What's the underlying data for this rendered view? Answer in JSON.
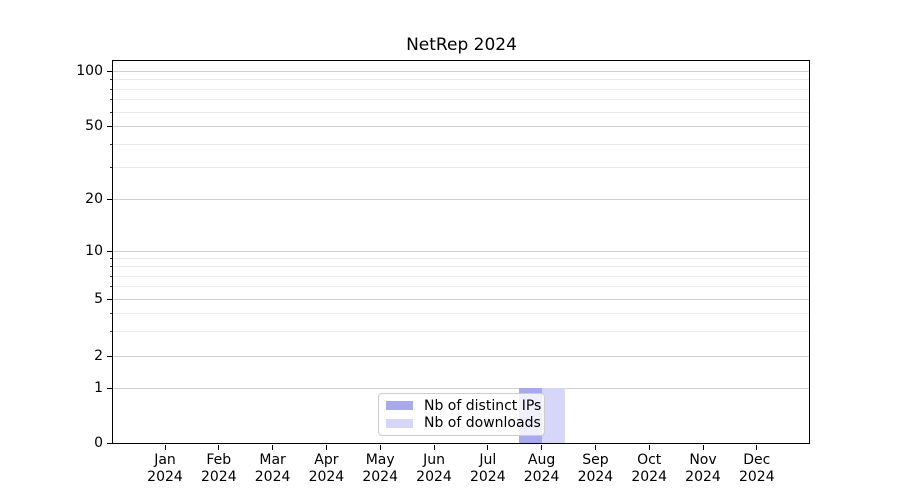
{
  "chart_data": {
    "type": "bar",
    "title": "NetRep 2024",
    "x_categories": [
      "Jan",
      "Feb",
      "Mar",
      "Apr",
      "May",
      "Jun",
      "Jul",
      "Aug",
      "Sep",
      "Oct",
      "Nov",
      "Dec"
    ],
    "x_year_label": "2024",
    "series": [
      {
        "name": "Nb of distinct IPs",
        "color": "#a9a9ee",
        "values": [
          0,
          0,
          0,
          0,
          0,
          0,
          0,
          1,
          0,
          0,
          0,
          0
        ]
      },
      {
        "name": "Nb of downloads",
        "color": "#d6d6f8",
        "values": [
          0,
          0,
          0,
          0,
          0,
          0,
          0,
          1,
          0,
          0,
          0,
          0
        ]
      }
    ],
    "y_major_ticks": [
      0,
      1,
      2,
      5,
      10,
      20,
      50,
      100
    ],
    "y_minor_ticks": [
      3,
      4,
      6,
      7,
      8,
      9,
      30,
      40,
      60,
      70,
      80,
      90
    ],
    "ylim": [
      0,
      100
    ],
    "yscale": "log-like with 0 baseline",
    "grid": "horizontal major and minor",
    "legend_position": "lower center",
    "colors": {
      "major_grid": "#cfcfcf",
      "minor_grid": "#e9e9e9",
      "axis": "#000000",
      "text": "#000000"
    }
  }
}
